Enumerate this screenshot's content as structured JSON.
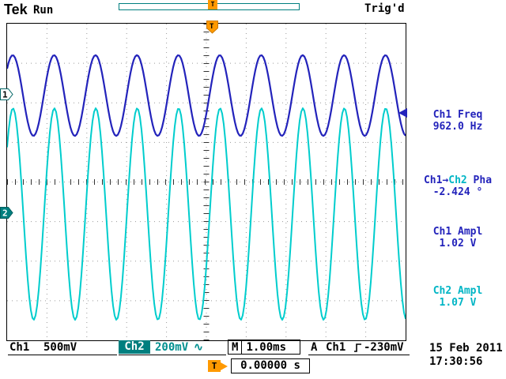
{
  "colors": {
    "ch1": "#2323bb",
    "ch2": "#00cdcd",
    "teal": "#007f7f",
    "orange": "#ff9900",
    "grid": "#9a9a9a",
    "tick": "#333333"
  },
  "header": {
    "logo": "Tek",
    "acq_state": "Run",
    "trigger_status": "Trig'd"
  },
  "markers": {
    "ch1": "1",
    "ch2": "2",
    "trigger_top": "T",
    "trigger_flag": "T"
  },
  "scope": {
    "h_divisions": 10,
    "v_divisions": 8,
    "cycles_on_screen": 9.62,
    "channels": [
      {
        "id": "ch1",
        "center_div_from_top": 1.815,
        "amplitude_div": 1.02,
        "phase_rad": -0.468,
        "color_key": "ch1",
        "stroke": 2.2
      },
      {
        "id": "ch2",
        "center_div_from_top": 4.81,
        "amplitude_div": 2.673,
        "phase_rad": -0.51,
        "color_key": "ch2",
        "stroke": 2
      }
    ]
  },
  "measurements": [
    {
      "label": "Ch1 Freq",
      "value": "962.0 Hz"
    },
    {
      "label_src": "Ch1",
      "label_arrow": "→",
      "label_dst": "Ch2",
      "label_suffix": " Pha",
      "value": "-2.424 °"
    },
    {
      "label": "Ch1 Ampl",
      "value": "1.02 V"
    },
    {
      "label": "Ch2 Ampl",
      "value": "1.07 V"
    }
  ],
  "status_bar": {
    "ch1_label": "Ch1",
    "ch1_scale": "500mV",
    "ch2_label": "Ch2",
    "ch2_scale": "200mV",
    "ch2_coupling": "∿",
    "timebase_prefix": "M",
    "timebase": "1.00ms",
    "trigger_mode": "A",
    "trigger_source": "Ch1",
    "trigger_level": "-230mV",
    "trigger_pos_label": "T",
    "trigger_pos_value": "0.00000 s",
    "date": "15 Feb 2011",
    "time": "17:30:56"
  }
}
